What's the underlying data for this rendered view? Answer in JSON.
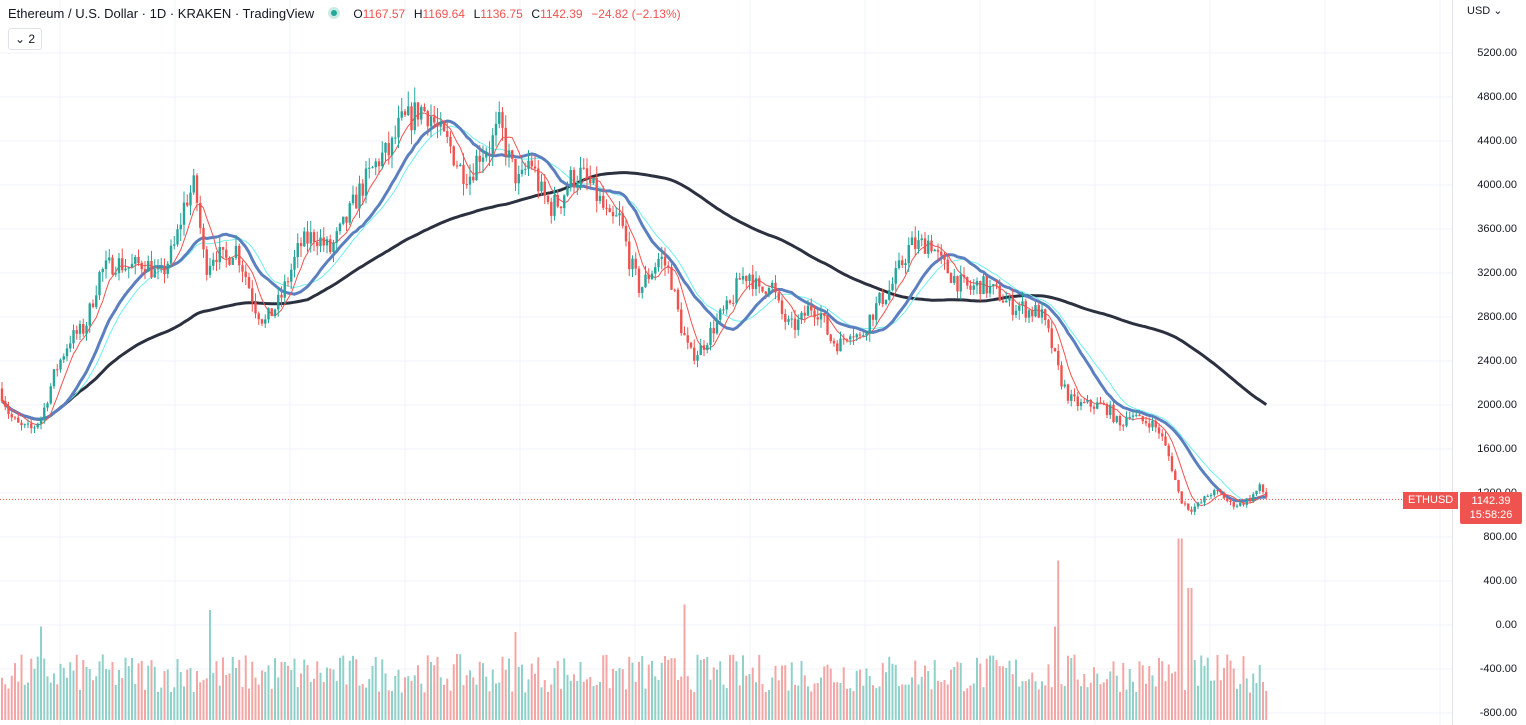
{
  "header": {
    "symbol_title": "Ethereum / U.S. Dollar · 1D · KRAKEN · TradingView",
    "ohlc": [
      {
        "label": "O",
        "value": "1167.57"
      },
      {
        "label": "H",
        "value": "1169.64"
      },
      {
        "label": "L",
        "value": "1136.75"
      },
      {
        "label": "C",
        "value": "1142.39"
      }
    ],
    "change": "−24.82 (−2.13%)",
    "collapse_label": "⌄ 2",
    "currency_label": "USD ⌄"
  },
  "last_price": {
    "symbol_badge": "ETHUSD",
    "price": "1142.39",
    "countdown": "15:58:26"
  },
  "colors": {
    "up": "#26a69a",
    "down": "#ef5350",
    "up_volume": "#8fd1c9",
    "down_volume": "#f3a6a4",
    "ma_fast": "#ef5350",
    "ma_mid_thin": "#6ff0ef",
    "ma_mid_thick": "#5b7fbf",
    "ma_slow": "#2c3140"
  },
  "chart_data": {
    "type": "candlestick",
    "title": "Ethereum / U.S. Dollar · 1D · KRAKEN · TradingView",
    "price_axis_ticks": [
      "5200.00",
      "4800.00",
      "4400.00",
      "4000.00",
      "3600.00",
      "3200.00",
      "2800.00",
      "2400.00",
      "2000.00",
      "1600.00",
      "1200.00",
      "800.00",
      "400.00",
      "0.00",
      "-400.00",
      "-800.00"
    ],
    "ylim": [
      -800,
      5400
    ],
    "last_price": 1142.39,
    "grid": true,
    "price_anchors": [
      [
        0,
        2150
      ],
      [
        10,
        1900
      ],
      [
        20,
        1800
      ],
      [
        32,
        1780
      ],
      [
        42,
        1900
      ],
      [
        55,
        2300
      ],
      [
        70,
        2600
      ],
      [
        85,
        2700
      ],
      [
        100,
        3200
      ],
      [
        115,
        3300
      ],
      [
        130,
        3250
      ],
      [
        145,
        3300
      ],
      [
        160,
        3150
      ],
      [
        175,
        3450
      ],
      [
        185,
        3850
      ],
      [
        195,
        4000
      ],
      [
        205,
        3250
      ],
      [
        215,
        3400
      ],
      [
        225,
        3300
      ],
      [
        235,
        3450
      ],
      [
        245,
        3200
      ],
      [
        255,
        2900
      ],
      [
        265,
        2750
      ],
      [
        280,
        2950
      ],
      [
        290,
        3200
      ],
      [
        300,
        3450
      ],
      [
        315,
        3550
      ],
      [
        330,
        3400
      ],
      [
        345,
        3650
      ],
      [
        360,
        3950
      ],
      [
        370,
        4100
      ],
      [
        380,
        4250
      ],
      [
        390,
        4300
      ],
      [
        400,
        4550
      ],
      [
        410,
        4600
      ],
      [
        420,
        4700
      ],
      [
        430,
        4650
      ],
      [
        440,
        4450
      ],
      [
        450,
        4350
      ],
      [
        460,
        4150
      ],
      [
        470,
        4100
      ],
      [
        480,
        4300
      ],
      [
        490,
        4350
      ],
      [
        500,
        4550
      ],
      [
        510,
        4200
      ],
      [
        520,
        4000
      ],
      [
        530,
        4250
      ],
      [
        540,
        3950
      ],
      [
        550,
        3800
      ],
      [
        560,
        3850
      ],
      [
        570,
        4050
      ],
      [
        580,
        4100
      ],
      [
        590,
        4000
      ],
      [
        600,
        3850
      ],
      [
        610,
        3650
      ],
      [
        620,
        3700
      ],
      [
        630,
        3300
      ],
      [
        640,
        3050
      ],
      [
        650,
        3200
      ],
      [
        660,
        3350
      ],
      [
        670,
        3200
      ],
      [
        680,
        2750
      ],
      [
        690,
        2450
      ],
      [
        700,
        2500
      ],
      [
        710,
        2650
      ],
      [
        720,
        2800
      ],
      [
        730,
        2900
      ],
      [
        740,
        3150
      ],
      [
        750,
        3200
      ],
      [
        760,
        3000
      ],
      [
        770,
        3150
      ],
      [
        780,
        2850
      ],
      [
        790,
        2700
      ],
      [
        800,
        2750
      ],
      [
        810,
        2900
      ],
      [
        820,
        2850
      ],
      [
        830,
        2600
      ],
      [
        840,
        2550
      ],
      [
        850,
        2700
      ],
      [
        860,
        2600
      ],
      [
        870,
        2800
      ],
      [
        880,
        2950
      ],
      [
        890,
        3050
      ],
      [
        900,
        3250
      ],
      [
        910,
        3450
      ],
      [
        920,
        3450
      ],
      [
        930,
        3500
      ],
      [
        940,
        3300
      ],
      [
        950,
        3200
      ],
      [
        960,
        3100
      ],
      [
        970,
        3050
      ],
      [
        980,
        3100
      ],
      [
        990,
        3050
      ],
      [
        1000,
        3000
      ],
      [
        1010,
        2900
      ],
      [
        1020,
        2900
      ],
      [
        1030,
        2850
      ],
      [
        1040,
        2850
      ],
      [
        1050,
        2600
      ],
      [
        1060,
        2250
      ],
      [
        1070,
        2050
      ],
      [
        1080,
        2000
      ],
      [
        1090,
        2000
      ],
      [
        1100,
        2000
      ],
      [
        1110,
        1950
      ],
      [
        1120,
        1800
      ],
      [
        1130,
        1950
      ],
      [
        1140,
        1850
      ],
      [
        1150,
        1850
      ],
      [
        1160,
        1750
      ],
      [
        1170,
        1500
      ],
      [
        1180,
        1150
      ],
      [
        1190,
        1050
      ],
      [
        1200,
        1100
      ],
      [
        1210,
        1200
      ],
      [
        1220,
        1200
      ],
      [
        1230,
        1100
      ],
      [
        1240,
        1100
      ],
      [
        1250,
        1150
      ],
      [
        1260,
        1250
      ],
      [
        1268,
        1142
      ]
    ],
    "volume_spikes": [
      [
        209,
        1.0
      ],
      [
        685,
        1.05
      ],
      [
        1058,
        1.45
      ],
      [
        1180,
        1.65
      ],
      [
        1190,
        1.2
      ],
      [
        1054,
        0.85
      ],
      [
        40,
        0.85
      ],
      [
        515,
        0.8
      ]
    ]
  }
}
